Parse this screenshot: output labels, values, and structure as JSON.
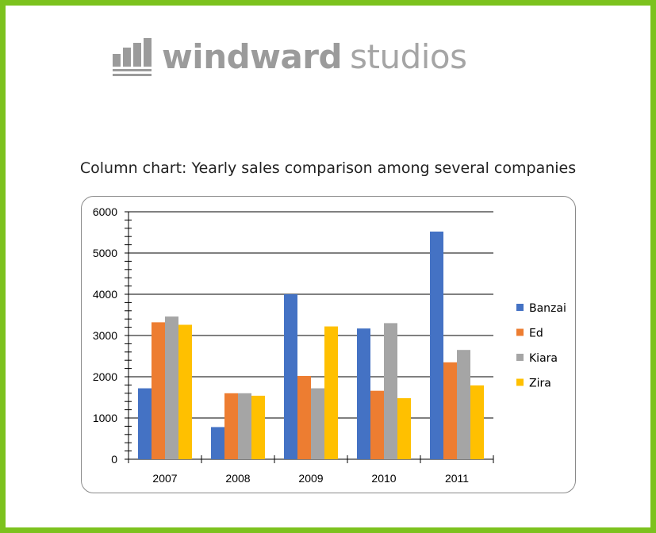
{
  "logo": {
    "word_bold": "windward",
    "word_light": "studios",
    "color": "#9b9b9b"
  },
  "frame_color": "#7cc21e",
  "chart_data": {
    "type": "bar",
    "title": "Column chart: Yearly sales comparison among several companies",
    "categories": [
      "2007",
      "2008",
      "2009",
      "2010",
      "2011"
    ],
    "series": [
      {
        "name": "Banzai",
        "color": "#4472c4",
        "values": [
          1720,
          780,
          4000,
          3170,
          5520
        ]
      },
      {
        "name": "Ed",
        "color": "#ed7d31",
        "values": [
          3320,
          1600,
          2020,
          1660,
          2350
        ]
      },
      {
        "name": "Kiara",
        "color": "#a5a5a5",
        "values": [
          3460,
          1600,
          1720,
          3300,
          2650
        ]
      },
      {
        "name": "Zira",
        "color": "#ffc000",
        "values": [
          3260,
          1540,
          3220,
          1480,
          1790
        ]
      }
    ],
    "ylim": [
      0,
      6000
    ],
    "yticks": [
      0,
      1000,
      2000,
      3000,
      4000,
      5000,
      6000
    ],
    "ytick_labels": [
      "0",
      "1000",
      "2000",
      "3000",
      "4000",
      "5000",
      "6000"
    ],
    "grid": true,
    "legend": "right"
  }
}
